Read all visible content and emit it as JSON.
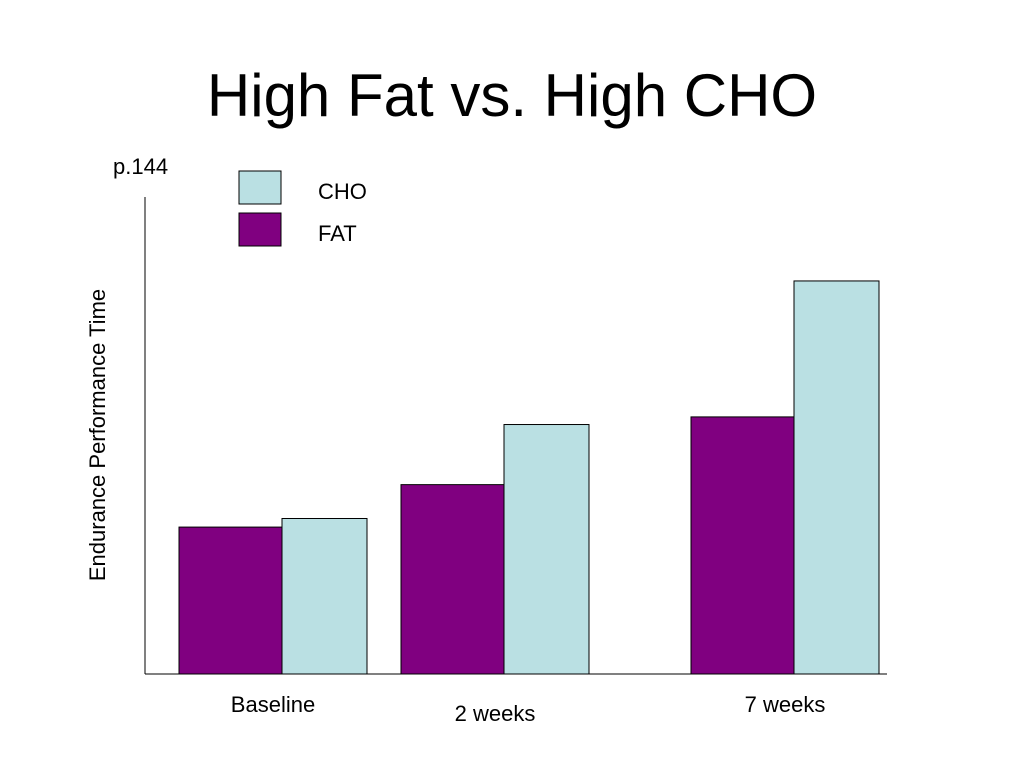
{
  "slide": {
    "title": "High Fat vs. High CHO",
    "page_ref": "p.144"
  },
  "chart_data": {
    "type": "bar",
    "title": "High Fat vs. High CHO",
    "ylabel": "Endurance Performance Time",
    "xlabel": "",
    "categories": [
      "Baseline",
      "2 weeks",
      "7 weeks"
    ],
    "series": [
      {
        "name": "FAT",
        "color": "#800080",
        "values": [
          30.8,
          39.7,
          53.9
        ]
      },
      {
        "name": "CHO",
        "color": "#bae0e3",
        "values": [
          32.6,
          52.3,
          82.4
        ]
      }
    ],
    "ylim": [
      0,
      100
    ],
    "y_ticks": "none",
    "grid": false,
    "legend": [
      "CHO",
      "FAT"
    ],
    "legend_position": "top-left"
  }
}
